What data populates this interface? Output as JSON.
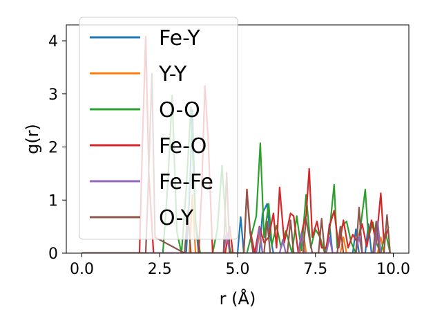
{
  "chart_data": {
    "type": "line",
    "title": "",
    "xlabel": "r (Å)",
    "ylabel": "g(r)",
    "xlim": [
      -0.5,
      10.5
    ],
    "ylim": [
      0,
      4.3
    ],
    "xticks": [
      0.0,
      2.5,
      5.0,
      7.5,
      10.0
    ],
    "xtick_labels": [
      "0.0",
      "2.5",
      "5.0",
      "7.5",
      "10.0"
    ],
    "yticks": [
      0,
      1,
      2,
      3,
      4
    ],
    "ytick_labels": [
      "0",
      "1",
      "2",
      "3",
      "4"
    ],
    "grid": false,
    "legend_position": "upper-left",
    "series": [
      {
        "name": "Fe-Y",
        "color": "#1f77b4",
        "x": [
          0,
          3.35,
          3.45,
          3.55,
          3.65,
          3.75,
          5.0,
          5.1,
          5.2,
          5.7,
          5.8,
          5.95,
          6.05,
          6.15,
          7.0,
          7.1,
          7.2,
          7.85,
          7.95,
          8.05,
          8.7,
          8.8,
          8.9,
          9.1,
          9.2,
          9.3,
          9.8,
          9.9
        ],
        "y": [
          0,
          0,
          1.0,
          2.7,
          0.6,
          0,
          0,
          0.68,
          0,
          0,
          0.75,
          0.93,
          0.3,
          0,
          0,
          0.45,
          0,
          0,
          0.55,
          0,
          0,
          0.45,
          0,
          0,
          0.55,
          0,
          0,
          0
        ]
      },
      {
        "name": "Y-Y",
        "color": "#ff7f0e",
        "x": [
          0,
          3.45,
          3.55,
          3.65,
          5.6,
          5.7,
          5.8,
          7.0,
          7.1,
          7.2,
          8.3,
          8.4,
          8.5,
          9.5,
          9.6,
          9.7,
          9.9
        ],
        "y": [
          0,
          0,
          1.1,
          0,
          0,
          0.35,
          0,
          0,
          0.4,
          0,
          0,
          0.3,
          0,
          0,
          0.3,
          0,
          0
        ]
      },
      {
        "name": "O-O",
        "color": "#2ca02c",
        "x": [
          0,
          2.6,
          2.75,
          2.9,
          3.05,
          3.2,
          3.35,
          3.5,
          3.65,
          3.8,
          4.2,
          4.35,
          4.5,
          4.65,
          4.8,
          5.3,
          5.45,
          5.6,
          5.73,
          5.85,
          6.0,
          6.1,
          6.25,
          6.4,
          6.55,
          6.75,
          6.9,
          7.05,
          7.2,
          7.35,
          7.5,
          7.65,
          7.8,
          7.95,
          8.1,
          8.2,
          8.35,
          8.5,
          8.65,
          8.8,
          8.95,
          9.1,
          9.2,
          9.35,
          9.45,
          9.6,
          9.75,
          9.9
        ],
        "y": [
          0,
          0,
          1.2,
          2.97,
          0.4,
          0,
          1.2,
          2.75,
          0.6,
          0,
          0,
          0.45,
          1.65,
          0.3,
          0,
          0,
          0.35,
          0.7,
          2.07,
          0.3,
          0.93,
          0.15,
          0.52,
          0.1,
          0.42,
          0,
          0.7,
          0.05,
          1.1,
          0.1,
          0.45,
          0.3,
          0,
          0.4,
          1.29,
          0.1,
          0.5,
          0.6,
          0.2,
          0,
          0.5,
          1.2,
          0.3,
          0.58,
          0.2,
          0,
          0.4,
          0
        ]
      },
      {
        "name": "Fe-O",
        "color": "#d62728",
        "x": [
          0,
          1.85,
          1.95,
          2.05,
          2.15,
          2.3,
          3.75,
          3.85,
          3.95,
          4.05,
          4.2,
          4.6,
          4.75,
          4.85,
          5.2,
          5.3,
          5.4,
          5.55,
          5.7,
          5.85,
          6.0,
          6.15,
          6.25,
          6.35,
          6.5,
          6.7,
          6.8,
          6.95,
          7.1,
          7.2,
          7.3,
          7.4,
          7.55,
          7.7,
          7.85,
          7.95,
          8.1,
          8.25,
          8.4,
          8.55,
          8.7,
          8.85,
          9.0,
          9.15,
          9.3,
          9.45,
          9.6,
          9.7,
          9.85
        ],
        "y": [
          0,
          0,
          2.2,
          4.08,
          1.5,
          0,
          0,
          1.2,
          3.15,
          2.2,
          0,
          0,
          0.5,
          0,
          0,
          1.2,
          0.45,
          0,
          0.5,
          0.2,
          0.3,
          0.75,
          0.1,
          1.24,
          0.2,
          0.75,
          0.7,
          0,
          0.5,
          0.7,
          1.59,
          0.3,
          0.6,
          0.1,
          0.1,
          0.5,
          0.8,
          0.1,
          0.62,
          0.1,
          0.35,
          0.2,
          0.55,
          0.12,
          0.62,
          0.2,
          1.13,
          0.2,
          0.5
        ]
      },
      {
        "name": "Fe-Fe",
        "color": "#9467bd",
        "x": [
          0,
          4.55,
          4.65,
          4.75,
          5.6,
          5.7,
          5.8,
          6.35,
          6.45,
          6.55,
          6.95,
          7.05,
          7.15,
          7.85,
          7.95,
          8.05,
          8.8,
          8.9,
          9.0,
          9.4,
          9.5,
          9.6,
          9.8,
          9.9
        ],
        "y": [
          0,
          0,
          0.4,
          0,
          0,
          0.48,
          0,
          0,
          0.25,
          0,
          0,
          0.38,
          0,
          0,
          0.3,
          0,
          0,
          0.32,
          0,
          0,
          0.6,
          0,
          0,
          0
        ]
      },
      {
        "name": "O-Y",
        "color": "#8c564b",
        "x": [
          0,
          2.05,
          2.15,
          2.25,
          2.35,
          3.3,
          3.4,
          3.5,
          4.55,
          4.65,
          4.75,
          5.2,
          5.3,
          5.4,
          5.5,
          5.85,
          5.95,
          6.05,
          6.6,
          6.7,
          6.8,
          7.1,
          7.2,
          7.3,
          7.4,
          7.6,
          7.7,
          7.8,
          8.2,
          8.3,
          8.4,
          8.8,
          8.9,
          9.0,
          9.35,
          9.45,
          9.55,
          9.7,
          9.8,
          9.9
        ],
        "y": [
          0,
          0,
          1.6,
          3.38,
          0.3,
          0,
          0.8,
          0,
          0,
          1.52,
          0,
          0,
          1.15,
          0.4,
          0,
          0,
          0.6,
          0,
          0,
          0.62,
          0,
          0,
          0.65,
          0.3,
          0,
          0,
          0.65,
          0,
          0,
          0.5,
          0,
          0,
          0.86,
          0,
          0,
          0.6,
          0,
          0,
          0.72,
          0
        ]
      }
    ]
  }
}
